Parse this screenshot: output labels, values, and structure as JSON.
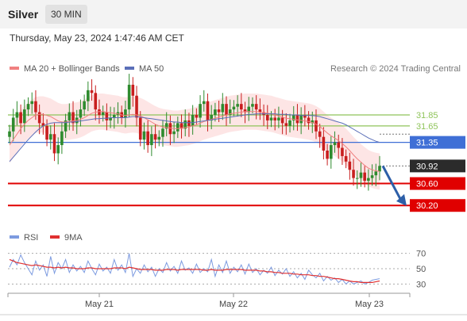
{
  "header": {
    "title": "Silver",
    "timeframe": "30 MIN"
  },
  "timestamp": "Thursday, May 23, 2024 1:47:46 AM CET",
  "legend": {
    "ma20_label": "MA 20 + Bollinger Bands",
    "ma50_label": "MA 50",
    "credit": "Research © 2024 Trading Central",
    "rsi_label": "RSI",
    "rsi_ma_label": "9MA"
  },
  "colors": {
    "ma20": "#f08080",
    "band": "#fde0e0",
    "ma50": "#5b6fb8",
    "green_level": "#8fc45a",
    "blue_level": "#3f6fd6",
    "red_level": "#e00000",
    "up_candle": "#2e8b2e",
    "down_candle": "#c81e1e",
    "arrow": "#2d5fa8",
    "rsi": "#7d9be0",
    "rsi_ma": "#e03030"
  },
  "chart_data": [
    {
      "type": "candlestick",
      "title": "Silver",
      "ylim": [
        29.9,
        32.5
      ],
      "x_ticks": [
        "May 21",
        "May 22",
        "May 23"
      ],
      "levels": [
        {
          "value": 31.85,
          "label": "31.85",
          "kind": "resistance-green"
        },
        {
          "value": 31.65,
          "label": "31.65",
          "kind": "resistance-green"
        },
        {
          "value": 31.35,
          "label": "31.35",
          "kind": "pivot-blue"
        },
        {
          "value": 30.92,
          "label": "30.92",
          "kind": "last-price"
        },
        {
          "value": 30.6,
          "label": "30.60",
          "kind": "support-red"
        },
        {
          "value": 30.2,
          "label": "30.20",
          "kind": "support-red"
        }
      ],
      "close": [
        31.55,
        31.8,
        31.9,
        31.7,
        31.95,
        32.05,
        32.1,
        31.9,
        31.7,
        31.65,
        31.4,
        31.5,
        31.15,
        31.3,
        31.55,
        31.75,
        31.9,
        31.7,
        31.8,
        31.95,
        32.1,
        32.3,
        32.25,
        31.95,
        31.85,
        31.9,
        31.75,
        31.8,
        31.85,
        31.9,
        31.8,
        31.95,
        32.4,
        32.2,
        31.8,
        31.4,
        31.55,
        31.3,
        31.5,
        31.4,
        31.45,
        31.6,
        31.7,
        31.5,
        31.55,
        31.7,
        31.6,
        31.75,
        31.65,
        31.85,
        31.8,
        32.05,
        32.1,
        31.75,
        31.85,
        31.95,
        31.9,
        32.05,
        31.85,
        31.95,
        32.0,
        32.05,
        31.95,
        31.9,
        32.0,
        32.05,
        31.95,
        31.9,
        31.85,
        31.75,
        31.8,
        31.75,
        31.8,
        31.7,
        31.65,
        31.75,
        31.85,
        31.7,
        31.85,
        31.8,
        31.7,
        31.75,
        31.55,
        31.45,
        31.2,
        31.05,
        31.3,
        31.35,
        31.25,
        31.1,
        31.0,
        30.85,
        30.7,
        30.7,
        30.8,
        30.65,
        30.7,
        30.75,
        30.82,
        30.92
      ],
      "ma20": [
        31.3,
        31.4,
        31.5,
        31.6,
        31.68,
        31.75,
        31.8,
        31.85,
        31.86,
        31.86,
        31.84,
        31.82,
        31.78,
        31.74,
        31.72,
        31.72,
        31.73,
        31.74,
        31.75,
        31.77,
        31.8,
        31.84,
        31.88,
        31.9,
        31.91,
        31.91,
        31.9,
        31.89,
        31.88,
        31.87,
        31.85,
        31.84,
        31.85,
        31.86,
        31.85,
        31.83,
        31.8,
        31.76,
        31.72,
        31.68,
        31.65,
        31.63,
        31.62,
        31.61,
        31.6,
        31.6,
        31.61,
        31.62,
        31.63,
        31.65,
        31.67,
        31.7,
        31.73,
        31.75,
        31.77,
        31.79,
        31.81,
        31.83,
        31.85,
        31.87,
        31.88,
        31.89,
        31.9,
        31.91,
        31.91,
        31.91,
        31.91,
        31.9,
        31.89,
        31.88,
        31.87,
        31.85,
        31.83,
        31.81,
        31.79,
        31.78,
        31.77,
        31.76,
        31.75,
        31.74,
        31.73,
        31.71,
        31.68,
        31.64,
        31.58,
        31.52,
        31.47,
        31.43,
        31.38,
        31.33,
        31.27,
        31.2,
        31.12,
        31.05,
        30.99,
        30.93,
        30.88,
        30.85,
        30.83,
        30.82
      ],
      "ma50": [
        31.0,
        31.08,
        31.16,
        31.24,
        31.32,
        31.4,
        31.47,
        31.54,
        31.6,
        31.65,
        31.68,
        31.7,
        31.71,
        31.71,
        31.71,
        31.71,
        31.72,
        31.72,
        31.73,
        31.74,
        31.75,
        31.76,
        31.77,
        31.78,
        31.78,
        31.79,
        31.79,
        31.8,
        31.8,
        31.8,
        31.8,
        31.8,
        31.81,
        31.82,
        31.82,
        31.81,
        31.8,
        31.79,
        31.78,
        31.77,
        31.76,
        31.75,
        31.74,
        31.73,
        31.72,
        31.72,
        31.71,
        31.71,
        31.71,
        31.71,
        31.72,
        31.73,
        31.74,
        31.75,
        31.76,
        31.77,
        31.78,
        31.79,
        31.8,
        31.81,
        31.82,
        31.83,
        31.84,
        31.85,
        31.86,
        31.86,
        31.87,
        31.87,
        31.87,
        31.87,
        31.87,
        31.87,
        31.86,
        31.86,
        31.86,
        31.85,
        31.85,
        31.85,
        31.84,
        31.84,
        31.84,
        31.84,
        31.83,
        31.82,
        31.8,
        31.78,
        31.76,
        31.74,
        31.72,
        31.7,
        31.67,
        31.63,
        31.59,
        31.55,
        31.51,
        31.47,
        31.43,
        31.4,
        31.37,
        31.35
      ]
    },
    {
      "type": "line",
      "ylim": [
        20,
        80
      ],
      "y_ticks": [
        "70",
        "50",
        "30"
      ],
      "series": [
        {
          "name": "RSI",
          "values": [
            52,
            62,
            55,
            68,
            58,
            50,
            42,
            60,
            48,
            55,
            40,
            66,
            44,
            58,
            50,
            62,
            45,
            55,
            47,
            53,
            45,
            60,
            50,
            42,
            56,
            47,
            52,
            44,
            62,
            48,
            55,
            45,
            70,
            40,
            50,
            44,
            55,
            46,
            52,
            40,
            50,
            45,
            58,
            47,
            53,
            44,
            60,
            48,
            51,
            44,
            56,
            45,
            50,
            46,
            62,
            40,
            55,
            45,
            60,
            44,
            52,
            46,
            55,
            43,
            56,
            45,
            50,
            42,
            48,
            44,
            52,
            41,
            48,
            43,
            50,
            40,
            46,
            38,
            44,
            36,
            48,
            42,
            38,
            44,
            34,
            40,
            35,
            38,
            32,
            36,
            30,
            34,
            30,
            32,
            34,
            30,
            32,
            35,
            36,
            37
          ]
        },
        {
          "name": "9MA",
          "values": [
            62,
            60,
            58,
            57,
            56,
            55,
            54,
            55,
            54,
            53,
            52,
            52,
            51,
            52,
            51,
            52,
            51,
            51,
            50,
            50,
            50,
            51,
            51,
            50,
            50,
            50,
            50,
            50,
            51,
            51,
            51,
            50,
            52,
            51,
            50,
            49,
            49,
            49,
            49,
            48,
            48,
            48,
            49,
            49,
            49,
            48,
            49,
            49,
            49,
            49,
            49,
            49,
            48,
            48,
            49,
            48,
            48,
            48,
            49,
            49,
            49,
            49,
            49,
            48,
            48,
            48,
            48,
            47,
            47,
            46,
            46,
            45,
            45,
            44,
            44,
            44,
            43,
            43,
            42,
            42,
            42,
            41,
            41,
            40,
            40,
            39,
            38,
            37,
            37,
            36,
            35,
            34,
            33,
            33,
            32,
            32,
            32,
            32,
            33,
            34
          ]
        }
      ]
    }
  ]
}
